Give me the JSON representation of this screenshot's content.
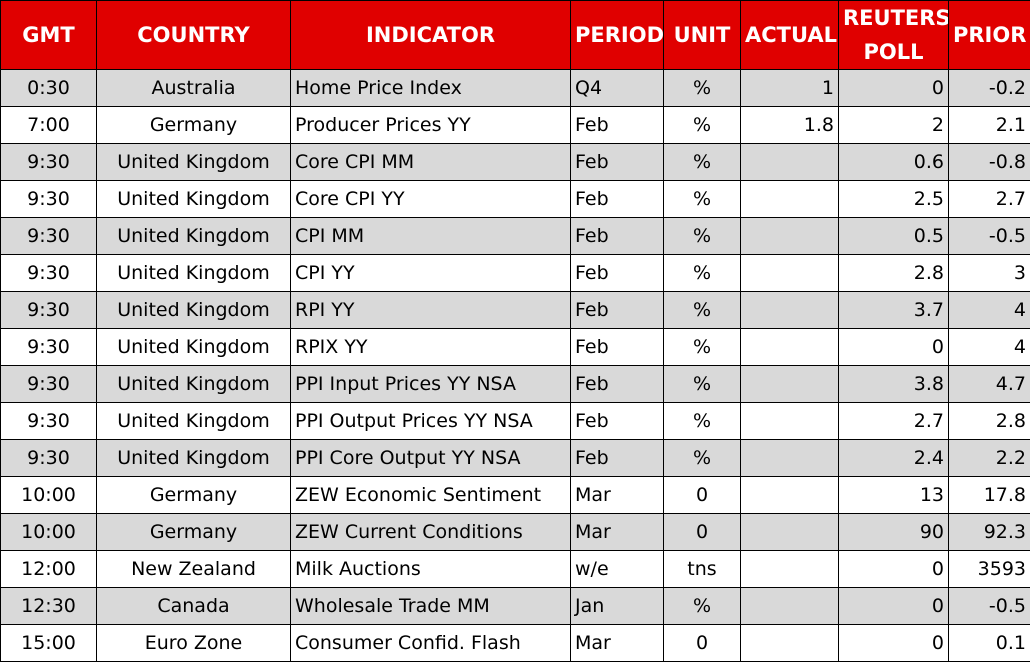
{
  "table": {
    "header": [
      "GMT",
      "COUNTRY",
      "INDICATOR",
      "PERIOD",
      "UNIT",
      "ACTUAL",
      "REUTERS POLL",
      "PRIOR"
    ],
    "rows": [
      [
        "0:30",
        "Australia",
        "Home Price Index",
        "Q4",
        "%",
        "1",
        "0",
        "-0.2"
      ],
      [
        "7:00",
        "Germany",
        "Producer Prices YY",
        "Feb",
        "%",
        "1.8",
        "2",
        "2.1"
      ],
      [
        "9:30",
        "United Kingdom",
        "Core CPI MM",
        "Feb",
        "%",
        null,
        "0.6",
        "-0.8"
      ],
      [
        "9:30",
        "United Kingdom",
        "Core CPI YY",
        "Feb",
        "%",
        null,
        "2.5",
        "2.7"
      ],
      [
        "9:30",
        "United Kingdom",
        "CPI MM",
        "Feb",
        "%",
        null,
        "0.5",
        "-0.5"
      ],
      [
        "9:30",
        "United Kingdom",
        "CPI YY",
        "Feb",
        "%",
        null,
        "2.8",
        "3"
      ],
      [
        "9:30",
        "United Kingdom",
        "RPI YY",
        "Feb",
        "%",
        null,
        "3.7",
        "4"
      ],
      [
        "9:30",
        "United Kingdom",
        "RPIX YY",
        "Feb",
        "%",
        null,
        "0",
        "4"
      ],
      [
        "9:30",
        "United Kingdom",
        "PPI Input Prices YY NSA",
        "Feb",
        "%",
        null,
        "3.8",
        "4.7"
      ],
      [
        "9:30",
        "United Kingdom",
        "PPI Output Prices YY NSA",
        "Feb",
        "%",
        null,
        "2.7",
        "2.8"
      ],
      [
        "9:30",
        "United Kingdom",
        "PPI Core Output YY NSA",
        "Feb",
        "%",
        null,
        "2.4",
        "2.2"
      ],
      [
        "10:00",
        "Germany",
        "ZEW Economic Sentiment",
        "Mar",
        "0",
        null,
        "13",
        "17.8"
      ],
      [
        "10:00",
        "Germany",
        "ZEW Current Conditions",
        "Mar",
        "0",
        null,
        "90",
        "92.3"
      ],
      [
        "12:00",
        "New Zealand",
        "Milk Auctions",
        "w/e",
        "tns",
        null,
        "0",
        "3593"
      ],
      [
        "12:30",
        "Canada",
        "Wholesale Trade MM",
        "Jan",
        "%",
        null,
        "0",
        "-0.5"
      ],
      [
        "15:00",
        "Euro Zone",
        "Consumer Confid. Flash",
        "Mar",
        "0",
        null,
        "0",
        "0.1"
      ]
    ]
  }
}
